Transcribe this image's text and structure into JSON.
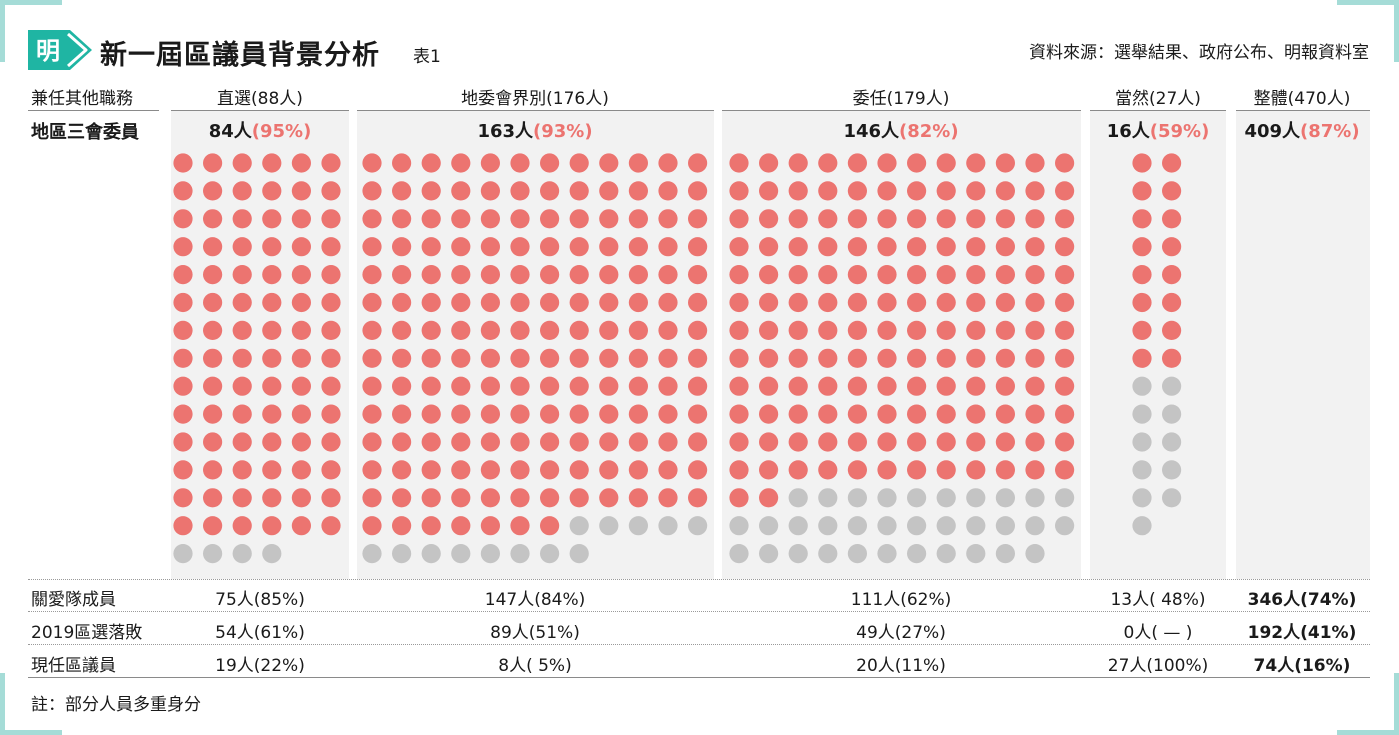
{
  "header": {
    "title": "新一屆區議員背景分析",
    "table_no": "表1",
    "source": "資料來源：選舉結果、政府公布、明報資料室",
    "logo_text": "明"
  },
  "colors": {
    "red": "#ec7470",
    "gray": "#c4c4c4",
    "accent": "#a5dcd7",
    "logo_green": "#1fb5a3"
  },
  "row_labels": {
    "header": "兼任其他職務",
    "district_committees": "地區三會委員",
    "caring_team": "關愛隊成員",
    "lost_2019": "2019區選落敗",
    "incumbent": "現任區議員"
  },
  "columns": [
    {
      "header": "直選(88人)",
      "district_committees": {
        "count": "84人",
        "pct": "(95%)"
      },
      "caring_team": "75人(85%)",
      "lost_2019": "54人(61%)",
      "incumbent": "19人(22%)"
    },
    {
      "header": "地委會界別(176人)",
      "district_committees": {
        "count": "163人",
        "pct": "(93%)"
      },
      "caring_team": "147人(84%)",
      "lost_2019": "89人(51%)",
      "incumbent": "8人(  5%)"
    },
    {
      "header": "委任(179人)",
      "district_committees": {
        "count": "146人",
        "pct": "(82%)"
      },
      "caring_team": "111人(62%)",
      "lost_2019": "49人(27%)",
      "incumbent": "20人(11%)"
    },
    {
      "header": "當然(27人)",
      "district_committees": {
        "count": "16人",
        "pct": "(59%)"
      },
      "caring_team": "13人(  48%)",
      "lost_2019": "0人(  —  )",
      "incumbent": "27人(100%)"
    },
    {
      "header": "整體(470人)",
      "district_committees": {
        "count": "409人",
        "pct": "(87%)"
      },
      "caring_team": "346人(74%)",
      "lost_2019": "192人(41%)",
      "incumbent": "74人(16%)"
    }
  ],
  "chart_data": {
    "type": "table",
    "title": "新一屆區議員背景分析",
    "waffle": [
      {
        "group": "直選",
        "total": 88,
        "highlighted": 84
      },
      {
        "group": "地委會界別",
        "total": 176,
        "highlighted": 163
      },
      {
        "group": "委任",
        "total": 179,
        "highlighted": 146
      },
      {
        "group": "當然",
        "total": 27,
        "highlighted": 16
      }
    ]
  },
  "footer": {
    "note": "註：部分人員多重身分"
  }
}
